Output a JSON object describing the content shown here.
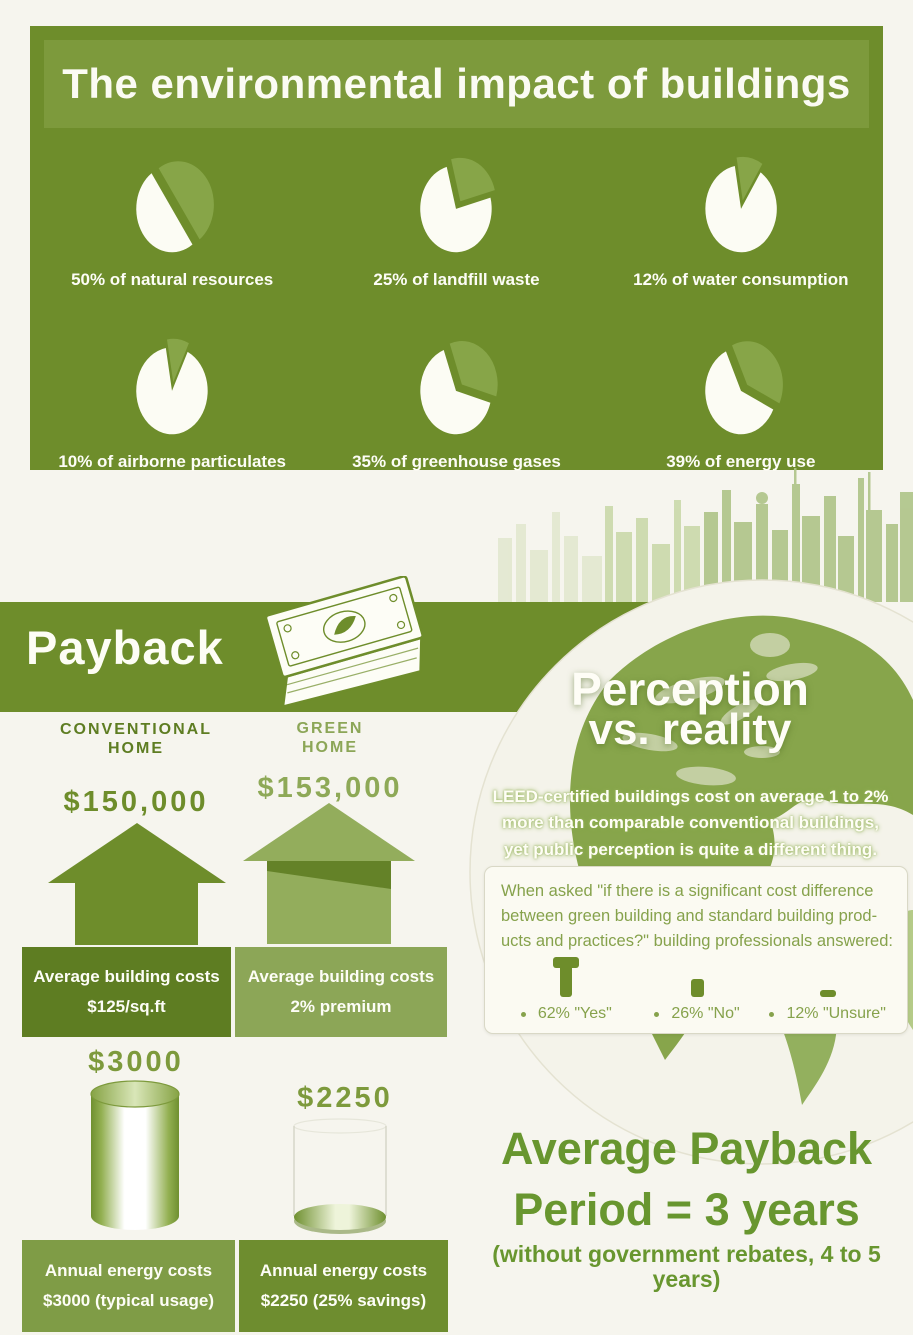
{
  "colors": {
    "green_dark": "#5e7d22",
    "green_main": "#6e8d2b",
    "green_mid": "#7d9a3c",
    "green_light": "#8ca657",
    "green_pale": "#b5c98e",
    "page_bg": "#f6f5ee",
    "text_white": "#fdfdf6",
    "summary_green": "#68962f"
  },
  "impact": {
    "title": "The environmental impact of buildings",
    "pies": [
      {
        "pct": 50,
        "start": -35,
        "label": "50% of natural resources"
      },
      {
        "pct": 25,
        "start": -15,
        "label": "25% of landfill waste"
      },
      {
        "pct": 12,
        "start": -10,
        "label": "12% of water consumption"
      },
      {
        "pct": 10,
        "start": -10,
        "label": "10% of airborne particulates"
      },
      {
        "pct": 35,
        "start": -20,
        "label": "35% of greenhouse gases"
      },
      {
        "pct": 39,
        "start": -25,
        "label": "39% of energy use"
      }
    ]
  },
  "payback": {
    "heading": "Payback",
    "conventional": {
      "name1": "CONVENTIONAL",
      "name2": "HOME",
      "build_price": "$150,000",
      "build_box1": "Average building costs",
      "build_box2": "$125/sq.ft",
      "energy_price": "$3000",
      "energy_box1": "Annual energy costs",
      "energy_box2": "$3000 (typical usage)"
    },
    "green": {
      "name1": "GREEN",
      "name2": "HOME",
      "build_price": "$153,000",
      "build_box1": "Average building costs",
      "build_box2": "2% premium",
      "energy_price": "$2250",
      "energy_box1": "Annual energy costs",
      "energy_box2": "$2250 (25% savings)"
    }
  },
  "perception": {
    "title1": "Perception",
    "title2": "vs. reality",
    "intro": [
      "LEED-certified buildings cost on average 1 to 2%",
      "more than comparable conventional buildings,",
      "yet public perception is quite a different thing."
    ],
    "question": [
      "When asked \"if there is a significant cost difference",
      "between green building and standard building prod-",
      "ucts and practices?\" building professionals answered:"
    ],
    "stats": [
      {
        "label": "62% \"Yes\""
      },
      {
        "label": "26% \"No\""
      },
      {
        "label": "12% \"Unsure\""
      }
    ]
  },
  "summary": {
    "line1": "Average Payback",
    "line2": "Period = 3 years",
    "line3": "(without government rebates, 4 to 5 years)"
  },
  "chart_data": [
    {
      "type": "pie",
      "title": "The environmental impact of buildings",
      "categories": [
        "natural resources",
        "landfill waste",
        "water consumption",
        "airborne particulates",
        "greenhouse gases",
        "energy use"
      ],
      "values": [
        50,
        25,
        12,
        10,
        35,
        39
      ],
      "note": "six exploded single-slice pies; value = % attributed to buildings"
    },
    {
      "type": "bar",
      "title": "Average building costs",
      "categories": [
        "Conventional home",
        "Green home"
      ],
      "values": [
        150000,
        153000
      ],
      "labels": [
        "$125/sq.ft",
        "2% premium"
      ]
    },
    {
      "type": "bar",
      "title": "Annual energy costs",
      "categories": [
        "Conventional home",
        "Green home"
      ],
      "values": [
        3000,
        2250
      ],
      "labels": [
        "$3000 (typical usage)",
        "$2250 (25% savings)"
      ]
    },
    {
      "type": "pie",
      "title": "Building professionals answered",
      "categories": [
        "Yes",
        "No",
        "Unsure"
      ],
      "values": [
        62,
        26,
        12
      ]
    }
  ]
}
